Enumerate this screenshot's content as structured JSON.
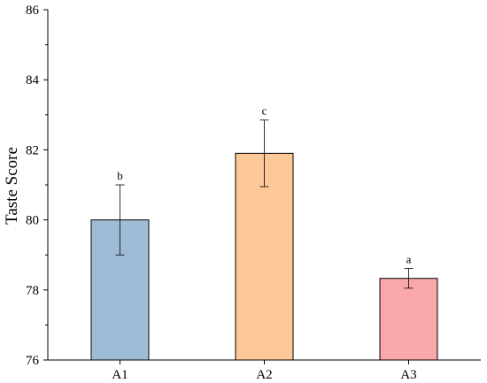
{
  "chart_data": {
    "type": "bar",
    "title": "",
    "xlabel": "",
    "ylabel": "Taste Score",
    "categories": [
      "A1",
      "A2",
      "A3"
    ],
    "values": [
      80.0,
      81.9,
      78.33
    ],
    "errors": [
      1.0,
      0.95,
      0.28
    ],
    "significance_labels": [
      "b",
      "c",
      "a"
    ],
    "colors": [
      "#9fbcd6",
      "#fdc897",
      "#f9a7ab"
    ],
    "ylim": [
      76,
      86
    ],
    "yticks": [
      76,
      78,
      80,
      82,
      84,
      86
    ],
    "grid": false,
    "legend": "none"
  }
}
